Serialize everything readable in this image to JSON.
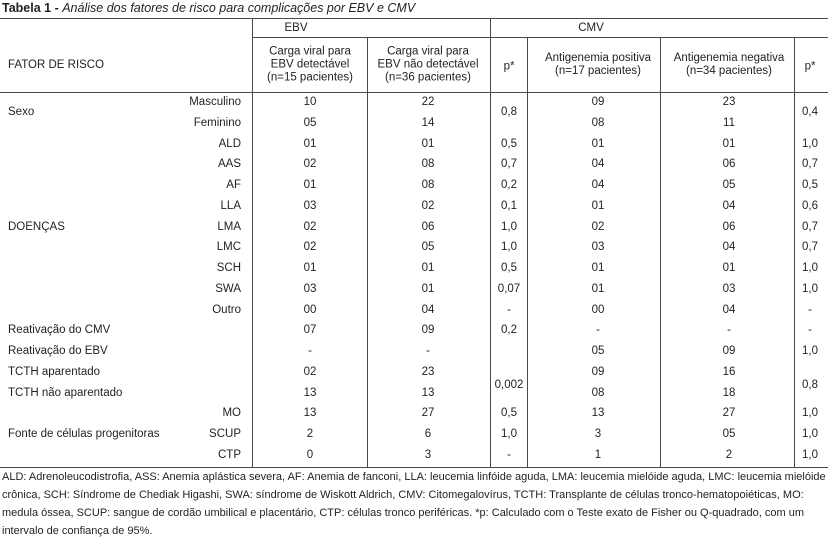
{
  "caption": {
    "label": "Tabela 1 - ",
    "title": "Análise dos fatores de risco para complicações por EBV e CMV"
  },
  "groups": {
    "ebv": "EBV",
    "cmv": "CMV"
  },
  "headers": {
    "fator": "FATOR DE RISCO",
    "ebv_pos": "Carga viral para\nEBV detectável\n(n=15 pacientes)",
    "ebv_neg": "Carga viral para\nEBV não detectável\n(n=36 pacientes)",
    "p1": "p*",
    "cmv_pos": "Antigenemia positiva\n(n=17 pacientes)",
    "cmv_neg": "Antigenemia negativa\n(n=34 pacientes)",
    "p2": "p*"
  },
  "rows": [
    {
      "cat": "",
      "sub": "Masculino",
      "ebv_pos": "10",
      "ebv_neg": "22",
      "p1": "",
      "cmv_pos": "09",
      "cmv_neg": "23",
      "p2": ""
    },
    {
      "cat": "",
      "sub": "Feminino",
      "ebv_pos": "05",
      "ebv_neg": "14",
      "p1": "",
      "cmv_pos": "08",
      "cmv_neg": "11",
      "p2": ""
    },
    {
      "cat": "",
      "sub": "ALD",
      "ebv_pos": "01",
      "ebv_neg": "01",
      "p1": "0,5",
      "cmv_pos": "01",
      "cmv_neg": "01",
      "p2": "1,0"
    },
    {
      "cat": "",
      "sub": "AAS",
      "ebv_pos": "02",
      "ebv_neg": "08",
      "p1": "0,7",
      "cmv_pos": "04",
      "cmv_neg": "06",
      "p2": "0,7"
    },
    {
      "cat": "",
      "sub": "AF",
      "ebv_pos": "01",
      "ebv_neg": "08",
      "p1": "0,2",
      "cmv_pos": "04",
      "cmv_neg": "05",
      "p2": "0,5"
    },
    {
      "cat": "",
      "sub": "LLA",
      "ebv_pos": "03",
      "ebv_neg": "02",
      "p1": "0,1",
      "cmv_pos": "01",
      "cmv_neg": "04",
      "p2": "0,6"
    },
    {
      "cat": "DOENÇAS",
      "sub": "LMA",
      "ebv_pos": "02",
      "ebv_neg": "06",
      "p1": "1,0",
      "cmv_pos": "02",
      "cmv_neg": "06",
      "p2": "0,7"
    },
    {
      "cat": "",
      "sub": "LMC",
      "ebv_pos": "02",
      "ebv_neg": "05",
      "p1": "1,0",
      "cmv_pos": "03",
      "cmv_neg": "04",
      "p2": "0,7"
    },
    {
      "cat": "",
      "sub": "SCH",
      "ebv_pos": "01",
      "ebv_neg": "01",
      "p1": "0,5",
      "cmv_pos": "01",
      "cmv_neg": "01",
      "p2": "1,0"
    },
    {
      "cat": "",
      "sub": "SWA",
      "ebv_pos": "03",
      "ebv_neg": "01",
      "p1": "0,07",
      "cmv_pos": "01",
      "cmv_neg": "03",
      "p2": "1,0"
    },
    {
      "cat": "",
      "sub": "Outro",
      "ebv_pos": "00",
      "ebv_neg": "04",
      "p1": "-",
      "cmv_pos": "00",
      "cmv_neg": "04",
      "p2": "-"
    },
    {
      "cat": "Reativação do CMV",
      "sub": "",
      "ebv_pos": "07",
      "ebv_neg": "09",
      "p1": "0,2",
      "cmv_pos": "-",
      "cmv_neg": "-",
      "p2": "-"
    },
    {
      "cat": "Reativação do EBV",
      "sub": "",
      "ebv_pos": "-",
      "ebv_neg": "-",
      "p1": "",
      "cmv_pos": "05",
      "cmv_neg": "09",
      "p2": "1,0"
    },
    {
      "cat": "TCTH aparentado",
      "sub": "",
      "ebv_pos": "02",
      "ebv_neg": "23",
      "p1": "",
      "cmv_pos": "09",
      "cmv_neg": "16",
      "p2": ""
    },
    {
      "cat": "TCTH não aparentado",
      "sub": "",
      "ebv_pos": "13",
      "ebv_neg": "13",
      "p1": "",
      "cmv_pos": "08",
      "cmv_neg": "18",
      "p2": ""
    },
    {
      "cat": "",
      "sub": "MO",
      "ebv_pos": "13",
      "ebv_neg": "27",
      "p1": "0,5",
      "cmv_pos": "13",
      "cmv_neg": "27",
      "p2": "1,0"
    },
    {
      "cat": "Fonte de células progenitoras",
      "sub": "SCUP",
      "ebv_pos": "2",
      "ebv_neg": "6",
      "p1": "1,0",
      "cmv_pos": "3",
      "cmv_neg": "05",
      "p2": "1,0"
    },
    {
      "cat": "",
      "sub": "CTP",
      "ebv_pos": "0",
      "ebv_neg": "3",
      "p1": "-",
      "cmv_pos": "1",
      "cmv_neg": "2",
      "p2": "1,0"
    }
  ],
  "merged": {
    "sexo_cat": "Sexo",
    "sexo_p1": "0,8",
    "sexo_p2": "0,4",
    "tcth_p1": "0,002",
    "tcth_p2": "0,8"
  },
  "footnote": "ALD: Adrenoleucodistrofia, ASS: Anemia aplástica severa, AF: Anemia de fanconi, LLA: leucemia linfóide aguda, LMA: leucemia mielóide aguda, LMC: leucemia mielóide crônica, SCH: Síndrome de Chediak Higashi, SWA: síndrome de Wiskott Aldrich, CMV: Citomegalovírus, TCTH: Transplante de células tronco-hematopoiéticas, MO: medula óssea, SCUP: sangue de cordão umbilical e placentário, CTP: células tronco periféricas. *p: Calculado com o Teste exato de Fisher ou Q-quadrado, com um intervalo de confiança de 95%."
}
